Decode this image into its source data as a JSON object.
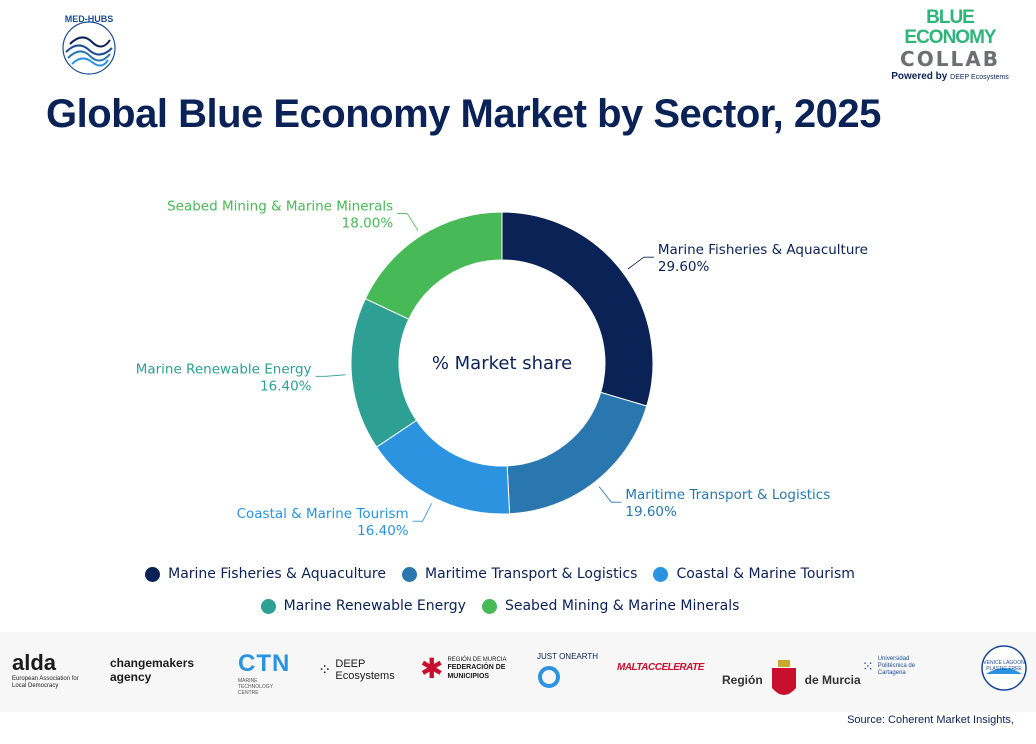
{
  "header": {
    "logo_text": "MED-HUBS",
    "brand_line1": "BLUE ECONOMY",
    "brand_line2": "COLLAB",
    "brand_powered": "Powered by",
    "brand_powered_org": "DEEP Ecosystems"
  },
  "chart_data": {
    "type": "pie",
    "title": "Global Blue Economy Market by Sector, 2025",
    "center_label": "% Market share",
    "categories": [
      "Marine Fisheries & Aquaculture",
      "Maritime Transport & Logistics",
      "Coastal & Marine Tourism",
      "Marine Renewable Energy",
      "Seabed Mining & Marine Minerals"
    ],
    "values": [
      29.6,
      19.6,
      16.4,
      16.4,
      18.0
    ],
    "value_labels": [
      "29.60%",
      "19.60%",
      "16.40%",
      "16.40%",
      "18.00%"
    ],
    "colors": [
      "#0b2257",
      "#2a77b0",
      "#2b93e0",
      "#2e9f93",
      "#47b956"
    ],
    "label_colors": [
      "#0b2257",
      "#2a77b0",
      "#2b93e0",
      "#2e9f93",
      "#47b956"
    ],
    "legend_placement": "bottom"
  },
  "partners": {
    "alda": "alda",
    "alda_sub": "European Association for Local Democracy",
    "changemakers": "changemakers agency",
    "ctn": "CTN",
    "ctn_sub": "MARINE TECHNOLOGY CENTRE",
    "deep": "DEEP Ecosystems",
    "fmrm_top": "REGIÓN DE MURCIA",
    "fmrm_main": "FEDERACIÓN DE MUNICIPIOS",
    "justonearth": "JUST ONEARTH",
    "malta": "MALTACCELERATE",
    "region_murcia_left": "Región",
    "region_murcia_right": "de Murcia",
    "upct": "Universidad Politécnica de Cartagena",
    "venice": "VENICE LAGOON PLASTIC FREE"
  },
  "source": "Source: Coherent Market Insights,"
}
